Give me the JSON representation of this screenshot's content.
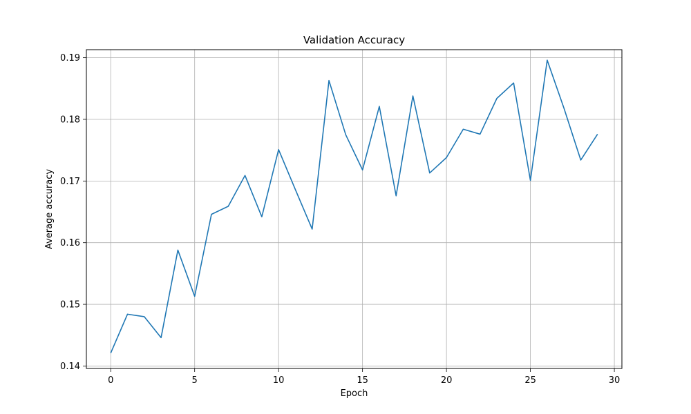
{
  "chart_data": {
    "type": "line",
    "title": "Validation Accuracy",
    "xlabel": "Epoch",
    "ylabel": "Average accuracy",
    "xlim": [
      -1.45,
      30.45
    ],
    "ylim": [
      0.1396,
      0.1913
    ],
    "xticks": [
      0,
      5,
      10,
      15,
      20,
      25,
      30
    ],
    "yticks": [
      0.14,
      0.15,
      0.16,
      0.17,
      0.18,
      0.19
    ],
    "ytick_labels": [
      "0.14",
      "0.15",
      "0.16",
      "0.17",
      "0.18",
      "0.19"
    ],
    "grid": true,
    "series": [
      {
        "color": "#1f77b4",
        "x": [
          0,
          1,
          2,
          3,
          4,
          5,
          6,
          7,
          8,
          9,
          10,
          11,
          12,
          13,
          14,
          15,
          16,
          17,
          18,
          19,
          20,
          21,
          22,
          23,
          24,
          25,
          26,
          27,
          28,
          29
        ],
        "values": [
          0.1421,
          0.1484,
          0.148,
          0.1446,
          0.1588,
          0.1513,
          0.1646,
          0.1659,
          0.1709,
          0.1642,
          0.1751,
          0.1686,
          0.1622,
          0.1863,
          0.1775,
          0.1718,
          0.1821,
          0.1676,
          0.1838,
          0.1713,
          0.1738,
          0.1784,
          0.1776,
          0.1834,
          0.1859,
          0.1701,
          0.1896,
          0.1818,
          0.1734,
          0.1776
        ]
      }
    ]
  }
}
